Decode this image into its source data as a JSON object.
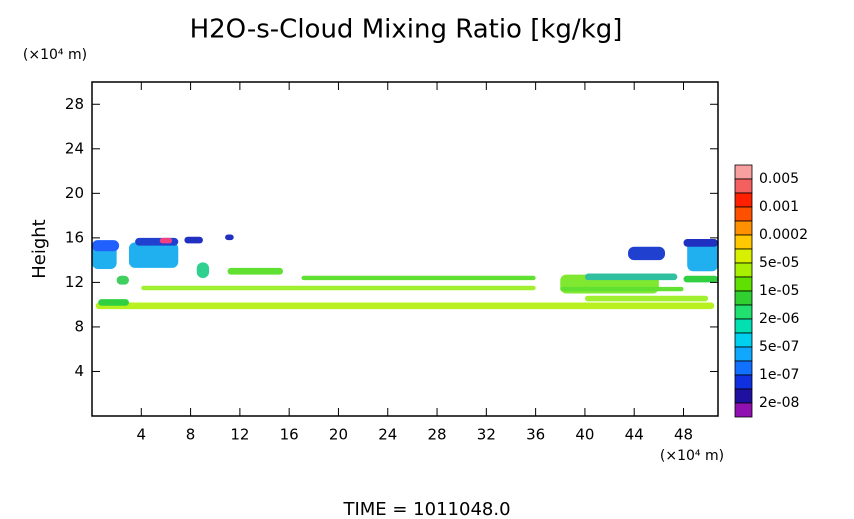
{
  "chart_data": {
    "type": "contour",
    "title": "H2O-s-Cloud Mixing Ratio [kg/kg]",
    "y_unit": "(×10⁴ m)",
    "x_unit": "(×10⁴ m)",
    "y_label": "Height",
    "footer": "TIME = 1011048.0",
    "xlim": [
      0,
      50.8
    ],
    "ylim": [
      0,
      30
    ],
    "xticks": [
      4,
      8,
      12,
      16,
      20,
      24,
      28,
      32,
      36,
      40,
      44,
      48
    ],
    "yticks": [
      4,
      8,
      12,
      16,
      20,
      24,
      28
    ],
    "levels": [
      0.005,
      0.001,
      0.0002,
      {
        "value": 5e-05,
        "label": "5e-05"
      },
      {
        "value": 1e-05,
        "label": "1e-05"
      },
      {
        "value": 2e-06,
        "label": "2e-06"
      },
      {
        "value": 5e-07,
        "label": "5e-07"
      },
      {
        "value": 1e-07,
        "label": "1e-07"
      },
      {
        "value": 2e-08,
        "label": "2e-08"
      }
    ],
    "colors": [
      "#f8a0a0",
      "#f46060",
      "#ff2000",
      "#ff5000",
      "#ff9000",
      "#ffc800",
      "#d8f000",
      "#a8f000",
      "#60e000",
      "#30d030",
      "#20e070",
      "#00e0b0",
      "#00d0f0",
      "#10a8ff",
      "#1070ff",
      "#1030e0",
      "#2010a0",
      "#9010b0"
    ],
    "patches": [
      {
        "x": [
          0.3,
          50.5
        ],
        "y": [
          9.6,
          10.2
        ],
        "color": "#b8f020"
      },
      {
        "x": [
          0.5,
          3.0
        ],
        "y": [
          9.9,
          10.5
        ],
        "color": "#30d040"
      },
      {
        "x": [
          0,
          2
        ],
        "y": [
          13.2,
          15.6
        ],
        "color": "#20b0f0"
      },
      {
        "x": [
          0,
          2.2
        ],
        "y": [
          14.8,
          15.8
        ],
        "color": "#2060ff"
      },
      {
        "x": [
          3,
          7
        ],
        "y": [
          13.3,
          15.6
        ],
        "color": "#20b0f0"
      },
      {
        "x": [
          3.5,
          7
        ],
        "y": [
          15.3,
          16.0
        ],
        "color": "#2040d0"
      },
      {
        "x": [
          5.5,
          6.5
        ],
        "y": [
          15.5,
          16.0
        ],
        "color": "#f04080"
      },
      {
        "x": [
          7.5,
          9
        ],
        "y": [
          15.5,
          16.1
        ],
        "color": "#2030c0"
      },
      {
        "x": [
          10.8,
          11.5
        ],
        "y": [
          15.8,
          16.3
        ],
        "color": "#2030c0"
      },
      {
        "x": [
          8.5,
          9.5
        ],
        "y": [
          12.4,
          13.8
        ],
        "color": "#30d090"
      },
      {
        "x": [
          11,
          15.5
        ],
        "y": [
          12.7,
          13.3
        ],
        "color": "#60e030"
      },
      {
        "x": [
          2,
          3
        ],
        "y": [
          11.8,
          12.6
        ],
        "color": "#40d060"
      },
      {
        "x": [
          17,
          36
        ],
        "y": [
          12.2,
          12.6
        ],
        "color": "#60e030"
      },
      {
        "x": [
          4,
          36
        ],
        "y": [
          11.3,
          11.7
        ],
        "color": "#a0f030"
      },
      {
        "x": [
          38,
          46
        ],
        "y": [
          11.0,
          12.7
        ],
        "color": "#80e830"
      },
      {
        "x": [
          40,
          47.5
        ],
        "y": [
          12.2,
          12.8
        ],
        "color": "#30c0a0"
      },
      {
        "x": [
          43.5,
          46.5
        ],
        "y": [
          14.0,
          15.2
        ],
        "color": "#2040d0"
      },
      {
        "x": [
          48.3,
          50.8
        ],
        "y": [
          13.0,
          15.8
        ],
        "color": "#20b0f0"
      },
      {
        "x": [
          48,
          50.8
        ],
        "y": [
          15.2,
          15.9
        ],
        "color": "#2030c0"
      },
      {
        "x": [
          40,
          50
        ],
        "y": [
          10.3,
          10.8
        ],
        "color": "#a0f030"
      },
      {
        "x": [
          48,
          50.8
        ],
        "y": [
          12,
          12.6
        ],
        "color": "#30d040"
      },
      {
        "x": [
          38,
          48
        ],
        "y": [
          11.2,
          11.6
        ],
        "color": "#60e030"
      }
    ]
  }
}
